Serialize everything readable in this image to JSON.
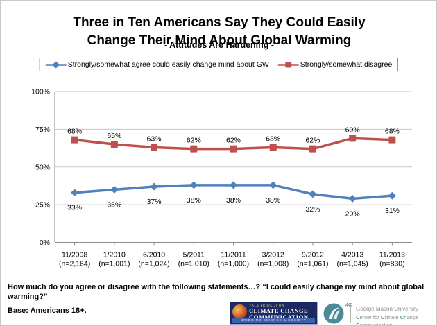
{
  "title_lines": [
    "Three in Ten Americans Say They Could Easily",
    "Change Their Mind About Global Warming"
  ],
  "subtitle": "- Attitudes Are Hardening -",
  "chart_data": {
    "type": "line",
    "title": "Three in Ten Americans Say They Could Easily Change Their Mind About Global Warming",
    "subtitle": "- Attitudes Are Hardening -",
    "x": [
      {
        "date": "11/2008",
        "n": "(n=2,164)"
      },
      {
        "date": "1/2010",
        "n": "(n=1,001)"
      },
      {
        "date": "6/2010",
        "n": "(n=1,024)"
      },
      {
        "date": "5/2011",
        "n": "(n=1,010)"
      },
      {
        "date": "11/2011",
        "n": "(n=1,000)"
      },
      {
        "date": "3/2012",
        "n": "(n=1,008)"
      },
      {
        "date": "9/2012",
        "n": "(n=1,061)"
      },
      {
        "date": "4/2013",
        "n": "(n=1,045)"
      },
      {
        "date": "11/2013",
        "n": "(n=830)"
      }
    ],
    "series": [
      {
        "name": "Strongly/somewhat agree could easily change mind about GW",
        "color": "#4F81BD",
        "marker": "diamond",
        "label_position": "below",
        "values": [
          33,
          35,
          37,
          38,
          38,
          38,
          32,
          29,
          31
        ]
      },
      {
        "name": "Strongly/somewhat disagree",
        "color": "#C0504D",
        "marker": "square",
        "label_position": "above",
        "values": [
          68,
          65,
          63,
          62,
          62,
          63,
          62,
          69,
          68
        ]
      }
    ],
    "ylim": [
      0,
      100
    ],
    "ytick_labels": [
      "0%",
      "25%",
      "50%",
      "75%",
      "100%"
    ],
    "grid": true,
    "legend_position": "top",
    "data_labels": true
  },
  "footer": {
    "question": "How much do you agree or disagree with the following statements…? “I could easily change my mind about global warming?”",
    "base": "Base: Americans 18+."
  },
  "logos": {
    "yale": {
      "line1": "YALE PROJECT ON",
      "line2": "CLIMATE CHANGE",
      "line3": "COMMUNICATION",
      "banner": "BRIDGING SCIENCE & SOCIETY"
    },
    "fourc_label": "4C",
    "gmu": {
      "line1": "George Mason University",
      "line2": "Center for Climate Change Communication"
    }
  },
  "colors": {
    "agree_line": "#4F81BD",
    "disagree_line": "#C0504D",
    "gridline": "#c6c6c6",
    "axis": "#8c8c8c",
    "teal_accent": "#4b96a1",
    "yale_navy": "#1b2a63"
  }
}
